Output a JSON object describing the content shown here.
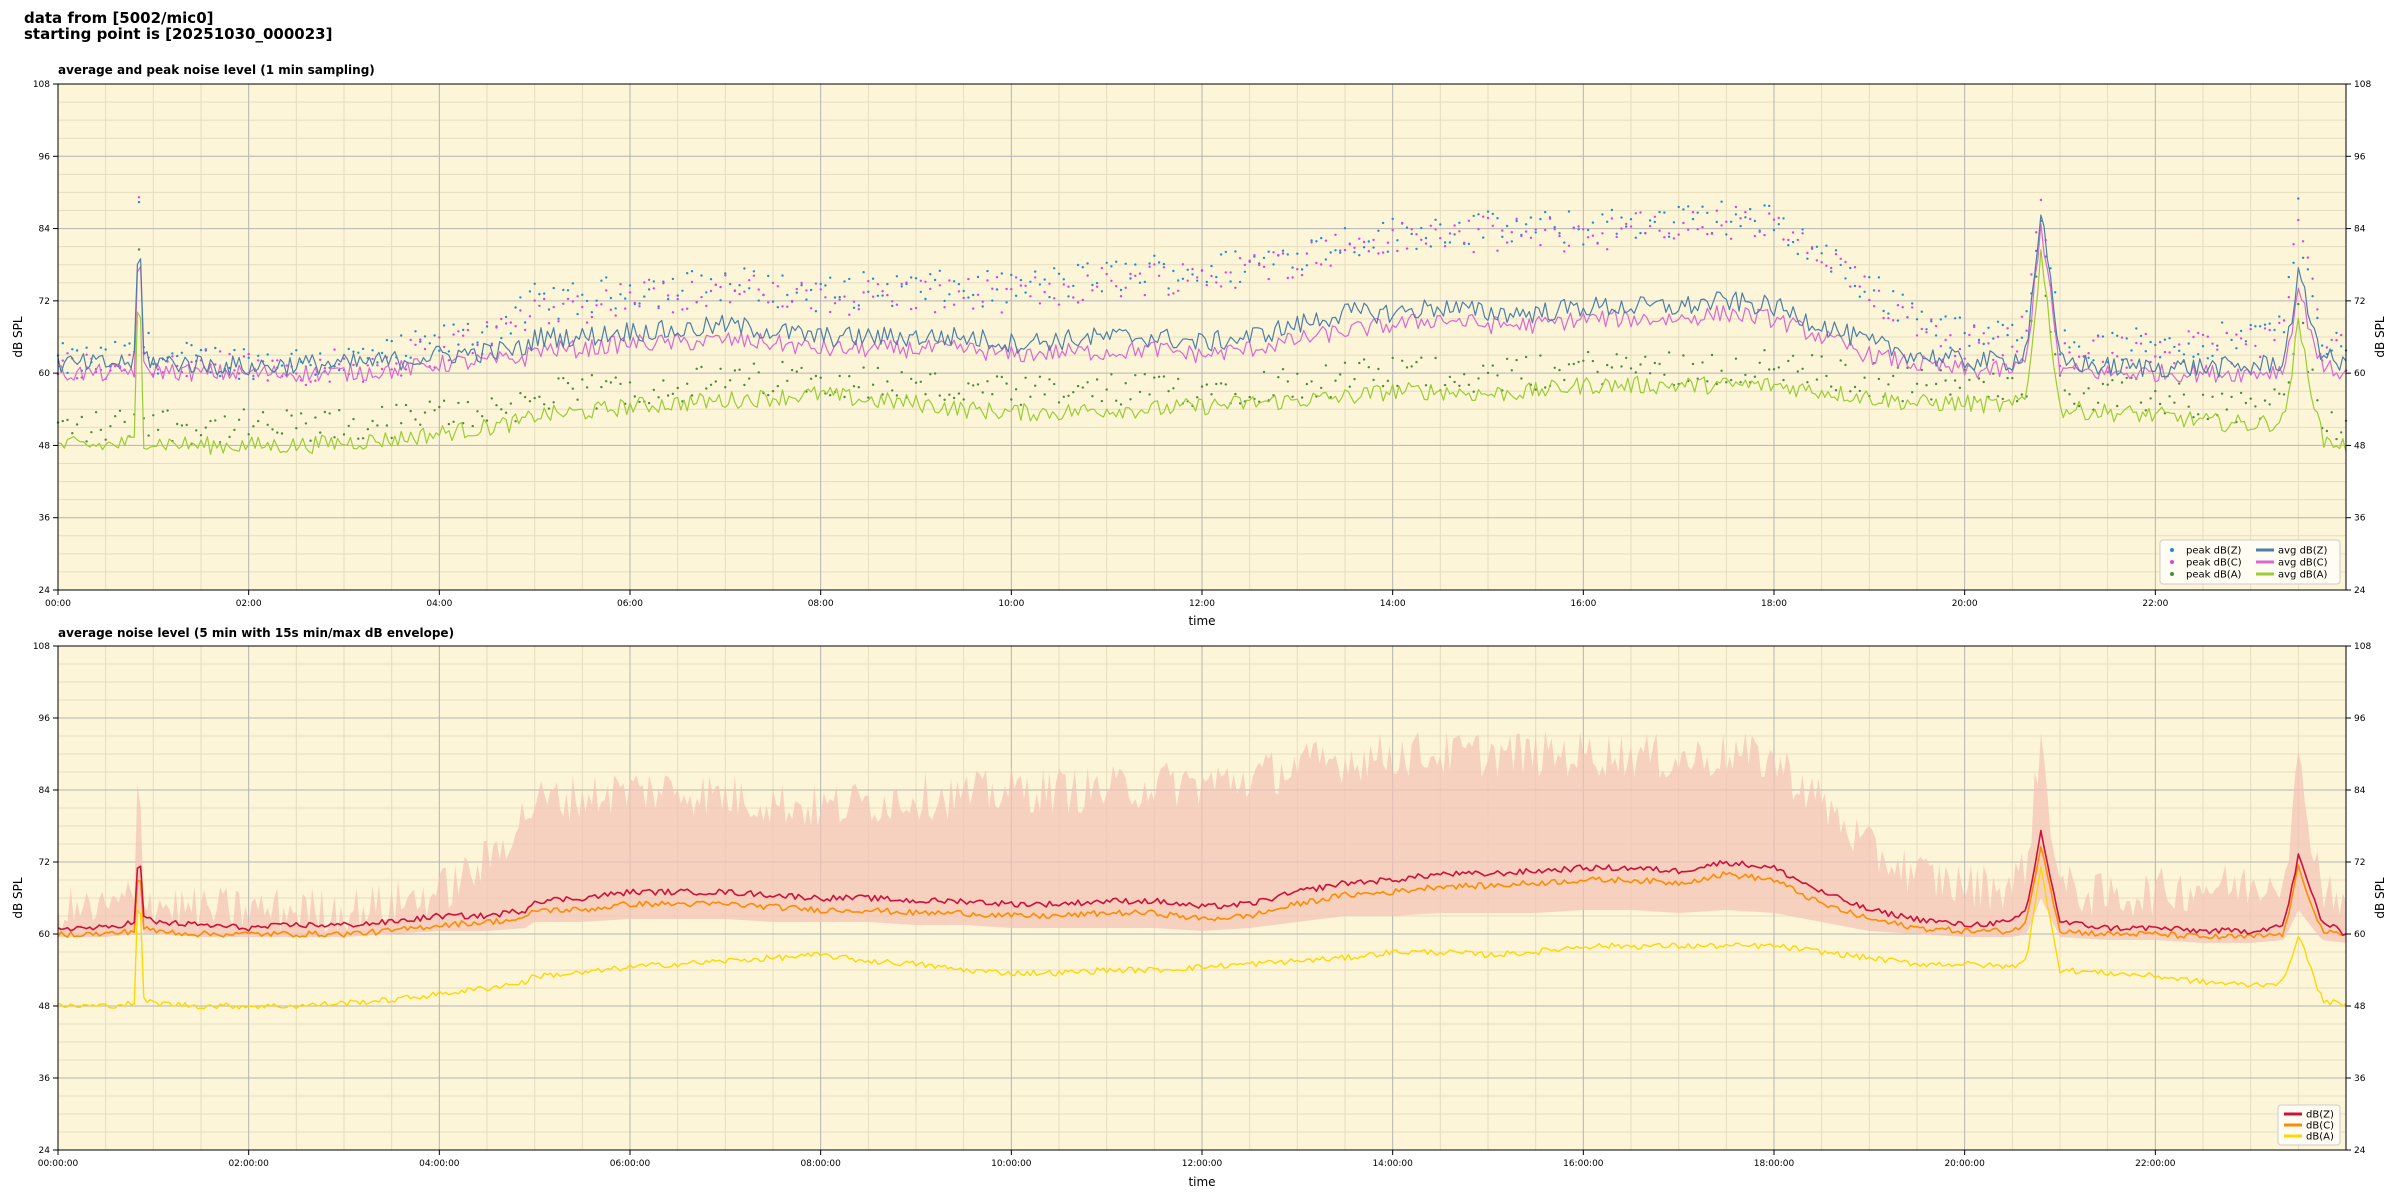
{
  "header": {
    "line1": "data from [5002/mic0]",
    "line2": "starting point is [20251030_000023]"
  },
  "colors": {
    "plot_bg": "#fdf5d8",
    "grid_major": "#b4b4b4",
    "grid_minor": "#e6ddbf",
    "peak_z": "#1f8fd0",
    "peak_c": "#e040e0",
    "peak_a": "#4c8a3c",
    "avg_z": "#4b7fa8",
    "avg_c": "#d968d0",
    "avg_a": "#9acd32",
    "line_z": "#d0103a",
    "line_c": "#ff8c00",
    "line_a": "#ffd700",
    "envelope": "#f4c2b5"
  },
  "chart_data": [
    {
      "type": "line",
      "title": "average and peak noise level (1 min sampling)",
      "xlabel": "time",
      "ylabel": "dB SPL",
      "ylim": [
        24,
        108
      ],
      "xlim_hours": [
        0,
        24
      ],
      "yticks": [
        "24",
        "36",
        "48",
        "60",
        "72",
        "84",
        "96",
        "108"
      ],
      "xticks": [
        "00:00",
        "02:00",
        "04:00",
        "06:00",
        "08:00",
        "10:00",
        "12:00",
        "14:00",
        "16:00",
        "18:00",
        "20:00",
        "22:00"
      ],
      "grid": true,
      "legend_position": "bottom-right",
      "legend": [
        "peak dB(Z)",
        "peak dB(C)",
        "peak dB(A)",
        "avg dB(Z)",
        "avg dB(C)",
        "avg dB(A)"
      ],
      "x_hours": [
        0,
        0.5,
        0.8,
        0.85,
        0.9,
        1,
        1.5,
        2,
        2.5,
        3,
        3.5,
        4,
        4.5,
        4.9,
        5,
        5.5,
        6,
        6.5,
        7,
        7.5,
        8,
        8.5,
        9,
        9.5,
        10,
        10.5,
        11,
        11.5,
        12,
        12.5,
        13,
        13.5,
        14,
        14.5,
        15,
        15.5,
        16,
        16.5,
        17,
        17.5,
        18,
        18.5,
        19,
        19.5,
        20,
        20.5,
        20.65,
        20.8,
        21,
        21.5,
        22,
        22.5,
        23,
        23.35,
        23.5,
        23.75,
        24
      ],
      "series": [
        {
          "name": "avg dB(Z)",
          "values": [
            61.5,
            61.5,
            62,
            86,
            63,
            62,
            61.5,
            61,
            61.5,
            61.5,
            62,
            63,
            63.5,
            64,
            66,
            66,
            67,
            67,
            68,
            67,
            66,
            66,
            66,
            66,
            65,
            65.5,
            66,
            66,
            65,
            66,
            68,
            70,
            70,
            71,
            70,
            70,
            71,
            71,
            71,
            72,
            71,
            68,
            65,
            63,
            62,
            62,
            64,
            87,
            62,
            61,
            61,
            61,
            61,
            62,
            76,
            63,
            61
          ]
        },
        {
          "name": "avg dB(C)",
          "values": [
            60,
            60,
            60.5,
            84,
            61,
            60.5,
            60,
            60,
            60,
            60,
            60.5,
            61.5,
            62,
            62.5,
            64,
            64,
            65,
            65,
            65.5,
            65,
            64,
            64,
            64,
            64,
            63,
            63.5,
            63.5,
            64,
            63,
            64,
            65.5,
            67,
            68,
            69,
            68,
            68,
            69,
            69,
            69,
            70,
            69,
            66,
            63,
            61.5,
            60.5,
            60.5,
            62,
            85,
            60.5,
            60,
            60,
            60,
            60,
            60.5,
            74,
            61,
            60
          ]
        },
        {
          "name": "avg dB(A)",
          "values": [
            48,
            48,
            48.5,
            80,
            49,
            48.5,
            48,
            48,
            48,
            48.5,
            49,
            50,
            51,
            52,
            53,
            53.5,
            54.5,
            55,
            55.5,
            56,
            56.5,
            55.5,
            55,
            54,
            53.5,
            53.5,
            54,
            54,
            54.5,
            55,
            55.5,
            56,
            57,
            57,
            56.5,
            57,
            58,
            58,
            58,
            58,
            58,
            57,
            56,
            55,
            55,
            54.5,
            56,
            80,
            54,
            53.5,
            53,
            52,
            51.5,
            52,
            68,
            49,
            48
          ]
        },
        {
          "name": "peak dB(Z)",
          "values": [
            62,
            62,
            63,
            89,
            65,
            63,
            62,
            62,
            62,
            62,
            63,
            65,
            67,
            70,
            72,
            72,
            74,
            74,
            75,
            74,
            73,
            74,
            74,
            74,
            74,
            75,
            76,
            77,
            77,
            78,
            80,
            82,
            83,
            84,
            84,
            84,
            84,
            85,
            85,
            86,
            85,
            80,
            74,
            70,
            66,
            66,
            70,
            88,
            65,
            64,
            65,
            65,
            66,
            68,
            86,
            66,
            64
          ]
        },
        {
          "name": "peak dB(C)",
          "values": [
            61,
            61,
            62,
            88,
            64,
            62,
            61,
            61,
            61,
            61,
            62,
            64,
            66,
            69,
            71,
            71,
            73,
            73,
            74,
            73,
            72,
            73,
            73,
            73,
            73,
            74,
            75,
            76,
            76,
            77,
            79,
            81,
            82,
            83,
            83,
            83,
            83,
            84,
            84,
            85,
            84,
            79,
            73,
            69,
            65,
            65,
            69,
            87,
            64,
            63,
            64,
            64,
            65,
            67,
            85,
            65,
            63
          ]
        },
        {
          "name": "peak dB(A)",
          "values": [
            51,
            51,
            52,
            82,
            53,
            52,
            51,
            51,
            51,
            51,
            52,
            53,
            54,
            55,
            56,
            56.5,
            57.5,
            58,
            58.5,
            59,
            59.5,
            58.5,
            58,
            57,
            56.5,
            56.5,
            57,
            57,
            57.5,
            58,
            58.5,
            59,
            60,
            60,
            59.5,
            60,
            61,
            61,
            61,
            61,
            61,
            60,
            59,
            58,
            58,
            57.5,
            59,
            82,
            57,
            56.5,
            56,
            55,
            54.5,
            55,
            70,
            52,
            51
          ]
        }
      ]
    },
    {
      "type": "line",
      "title": "average noise level (5 min with 15s min/max dB envelope)",
      "xlabel": "time",
      "ylabel": "dB SPL",
      "ylim": [
        24,
        108
      ],
      "xlim_hours": [
        0,
        24
      ],
      "yticks": [
        "24",
        "36",
        "48",
        "60",
        "72",
        "84",
        "96",
        "108"
      ],
      "xticks": [
        "00:00:00",
        "02:00:00",
        "04:00:00",
        "06:00:00",
        "08:00:00",
        "10:00:00",
        "12:00:00",
        "14:00:00",
        "16:00:00",
        "18:00:00",
        "20:00:00",
        "22:00:00"
      ],
      "grid": true,
      "legend_position": "bottom-right",
      "legend": [
        "dB(Z)",
        "dB(C)",
        "dB(A)"
      ],
      "x_hours": [
        0,
        0.5,
        0.8,
        0.85,
        0.9,
        1,
        1.5,
        2,
        2.5,
        3,
        3.5,
        4,
        4.5,
        4.9,
        5,
        5.5,
        6,
        6.5,
        7,
        7.5,
        8,
        8.5,
        9,
        9.5,
        10,
        10.5,
        11,
        11.5,
        12,
        12.5,
        13,
        13.5,
        14,
        14.5,
        15,
        15.5,
        16,
        16.5,
        17,
        17.5,
        18,
        18.5,
        19,
        19.5,
        20,
        20.5,
        20.65,
        20.8,
        21,
        21.5,
        22,
        22.5,
        23,
        23.35,
        23.5,
        23.75,
        24
      ],
      "series": [
        {
          "name": "dB(Z)",
          "values": [
            61,
            61,
            62,
            75,
            63,
            62,
            61.5,
            61,
            61.5,
            61.5,
            62,
            63,
            63,
            64,
            65.5,
            66,
            67,
            67,
            67,
            66.5,
            66,
            66,
            65.5,
            65.5,
            65,
            65,
            65.5,
            65.5,
            64.5,
            65,
            67,
            68.5,
            69,
            70,
            70,
            70.5,
            71,
            71,
            70.5,
            72,
            71,
            67,
            64,
            62.5,
            61.5,
            62,
            64,
            77,
            62,
            61,
            61,
            60.5,
            60.5,
            61.5,
            73,
            62,
            60
          ]
        },
        {
          "name": "dB(C)",
          "values": [
            60,
            60,
            60.5,
            73,
            61,
            60.5,
            60,
            60,
            60,
            60,
            60.5,
            61.5,
            62,
            62.5,
            64,
            64,
            65,
            65,
            65,
            64.5,
            64,
            64,
            63.5,
            63.5,
            63,
            63,
            63.5,
            63.5,
            62.5,
            63,
            65,
            66.5,
            67,
            68,
            68,
            68.5,
            69,
            69,
            68.5,
            70,
            69,
            65,
            62.5,
            61,
            60.5,
            60.5,
            62,
            75,
            60.5,
            60,
            60,
            59.5,
            59.5,
            60,
            71,
            60.5,
            59.5
          ]
        },
        {
          "name": "dB(A)",
          "values": [
            48,
            48,
            48.5,
            71,
            49,
            48.5,
            48,
            48,
            48,
            48.5,
            49,
            50,
            51,
            52,
            53,
            53.5,
            54.5,
            55,
            55.5,
            56,
            56.5,
            55.5,
            55,
            54,
            53.5,
            53.5,
            54,
            54,
            54.5,
            55,
            55.5,
            56,
            57,
            57,
            56.5,
            57,
            58,
            58,
            58,
            58,
            58,
            57,
            56,
            55,
            55,
            54.5,
            56,
            71,
            54,
            53.5,
            53,
            52,
            51.5,
            52,
            60,
            49,
            48
          ]
        },
        {
          "name": "envelope max",
          "values": [
            64,
            64,
            66,
            92,
            67,
            65,
            64,
            64,
            64,
            64,
            65,
            67,
            72,
            80,
            82,
            83,
            84,
            84,
            83,
            82,
            81,
            82,
            83,
            83,
            84,
            84,
            84,
            85,
            85,
            86,
            88,
            89,
            90,
            90,
            90,
            90,
            90,
            90,
            89,
            90,
            89,
            82,
            74,
            70,
            68,
            68,
            72,
            92,
            68,
            66,
            67,
            68,
            68,
            70,
            88,
            68,
            66
          ]
        },
        {
          "name": "envelope min",
          "values": [
            59.5,
            59.5,
            60,
            65,
            60,
            60,
            59.5,
            59.5,
            59.5,
            59.5,
            60,
            60.5,
            60.5,
            61,
            62,
            62,
            62.5,
            62.5,
            62.5,
            62,
            62,
            62,
            61.5,
            61.5,
            61,
            61,
            61,
            61,
            60.5,
            61,
            62,
            63,
            63,
            63.5,
            63.5,
            63.5,
            64,
            64,
            63.5,
            64,
            63.5,
            62,
            60.5,
            60,
            59.5,
            59.5,
            60,
            66,
            59.5,
            59,
            59,
            58.5,
            58.5,
            59,
            64,
            59,
            58.5
          ]
        }
      ]
    }
  ]
}
